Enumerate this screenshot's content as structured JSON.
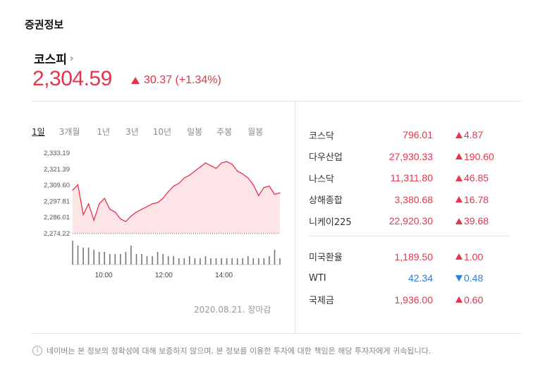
{
  "section_title": "증권정보",
  "index": {
    "name": "코스피",
    "chevron": "›",
    "value": "2,304.59",
    "change": "30.37 (+1.34%)"
  },
  "periods": [
    "1일",
    "3개월",
    "1년",
    "3년",
    "10년",
    "일봉",
    "주봉",
    "월봉"
  ],
  "active_period": "1일",
  "date_note": "2020.08.21. 장마감",
  "markets": [
    {
      "name": "코스닥",
      "value": "796.01",
      "change": "4.87",
      "dir": "up"
    },
    {
      "name": "다우산업",
      "value": "27,930.33",
      "change": "190.60",
      "dir": "up"
    },
    {
      "name": "나스닥",
      "value": "11,311.80",
      "change": "46.85",
      "dir": "up"
    },
    {
      "name": "상해종합",
      "value": "3,380.68",
      "change": "16.78",
      "dir": "up"
    },
    {
      "name": "니케이225",
      "value": "22,920.30",
      "change": "39.68",
      "dir": "up"
    }
  ],
  "others": [
    {
      "name": "미국환율",
      "value": "1,189.50",
      "change": "1.00",
      "dir": "up"
    },
    {
      "name": "WTI",
      "value": "42.34",
      "change": "0.48",
      "dir": "down"
    },
    {
      "name": "국제금",
      "value": "1,936.00",
      "change": "0.60",
      "dir": "up"
    }
  ],
  "footer": "네이버는 본 정보의 정확성에 대해 보증하지 않으며, 본 정보를 이용한 투자에 대한 책임은 해당 투자자에게 귀속됩니다.",
  "colors": {
    "up": "#e5344b",
    "down": "#2f7ddb",
    "area": "#fde4e6"
  },
  "chart_data": {
    "type": "area",
    "y_ticks": [
      "2,333.19",
      "2,321.39",
      "2,309.60",
      "2,297.81",
      "2,286.01",
      "2,274.22"
    ],
    "x_ticks": [
      "10:00",
      "12:00",
      "14:00"
    ],
    "ylim": [
      2274.22,
      2333.19
    ],
    "baseline": 2274.22,
    "x": [
      "09:00",
      "09:10",
      "09:20",
      "09:30",
      "09:40",
      "09:50",
      "10:00",
      "10:10",
      "10:20",
      "10:30",
      "10:40",
      "10:50",
      "11:00",
      "11:10",
      "11:20",
      "11:30",
      "11:40",
      "11:50",
      "12:00",
      "12:10",
      "12:20",
      "12:30",
      "12:40",
      "12:50",
      "13:00",
      "13:10",
      "13:20",
      "13:30",
      "13:40",
      "13:50",
      "14:00",
      "14:10",
      "14:20",
      "14:30",
      "14:40",
      "14:50",
      "15:00",
      "15:10",
      "15:20",
      "15:30"
    ],
    "values": [
      2306,
      2310,
      2288,
      2296,
      2284,
      2296,
      2300,
      2292,
      2290,
      2285,
      2283,
      2287,
      2290,
      2292,
      2294,
      2296,
      2297,
      2300,
      2305,
      2309,
      2311,
      2315,
      2317,
      2320,
      2323,
      2326,
      2324,
      2322,
      2326,
      2327,
      2325,
      2320,
      2318,
      2315,
      2310,
      2302,
      2308,
      2309,
      2303,
      2304
    ],
    "volume": [
      10,
      9,
      8,
      8,
      7,
      6,
      6,
      5,
      5,
      5,
      6,
      9,
      5,
      5,
      4,
      4,
      6,
      5,
      4,
      4,
      3,
      3,
      4,
      3,
      3,
      4,
      3,
      3,
      3,
      3,
      3,
      3,
      3,
      4,
      3,
      3,
      3,
      4,
      7,
      3
    ]
  }
}
